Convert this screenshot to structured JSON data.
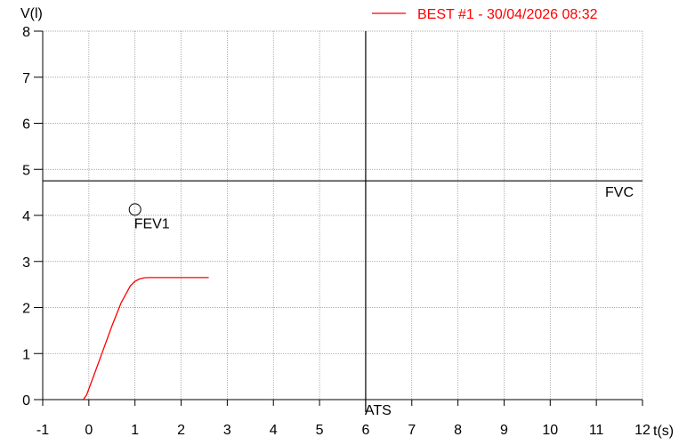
{
  "chart_data": {
    "type": "line",
    "ylabel": "V(l)",
    "xlabel": "t(s)",
    "xlim": [
      -1,
      12
    ],
    "ylim": [
      0,
      8
    ],
    "grid": true,
    "x_ticks": [
      -1,
      0,
      1,
      2,
      3,
      4,
      5,
      6,
      7,
      8,
      9,
      10,
      11,
      12
    ],
    "y_ticks": [
      0,
      1,
      2,
      3,
      4,
      5,
      6,
      7,
      8
    ],
    "legend": {
      "position": "top-right",
      "entries": [
        "BEST #1 - 30/04/2026  08:32"
      ]
    },
    "series": [
      {
        "name": "BEST #1 - 30/04/2026  08:32",
        "color": "#ff0000",
        "x": [
          -0.12,
          -0.05,
          0.1,
          0.3,
          0.5,
          0.7,
          0.9,
          1.0,
          1.1,
          1.2,
          1.3,
          1.5,
          2.0,
          2.6
        ],
        "y": [
          0.0,
          0.1,
          0.5,
          1.05,
          1.6,
          2.1,
          2.47,
          2.57,
          2.62,
          2.645,
          2.65,
          2.65,
          2.65,
          2.65
        ]
      }
    ],
    "reference_lines": [
      {
        "orientation": "horizontal",
        "value": 4.75,
        "label": "FVC"
      },
      {
        "orientation": "vertical",
        "value": 6,
        "label": "ATS"
      }
    ],
    "markers": [
      {
        "x": 1.0,
        "y": 4.05,
        "label": "FEV1",
        "shape": "circle"
      }
    ]
  }
}
